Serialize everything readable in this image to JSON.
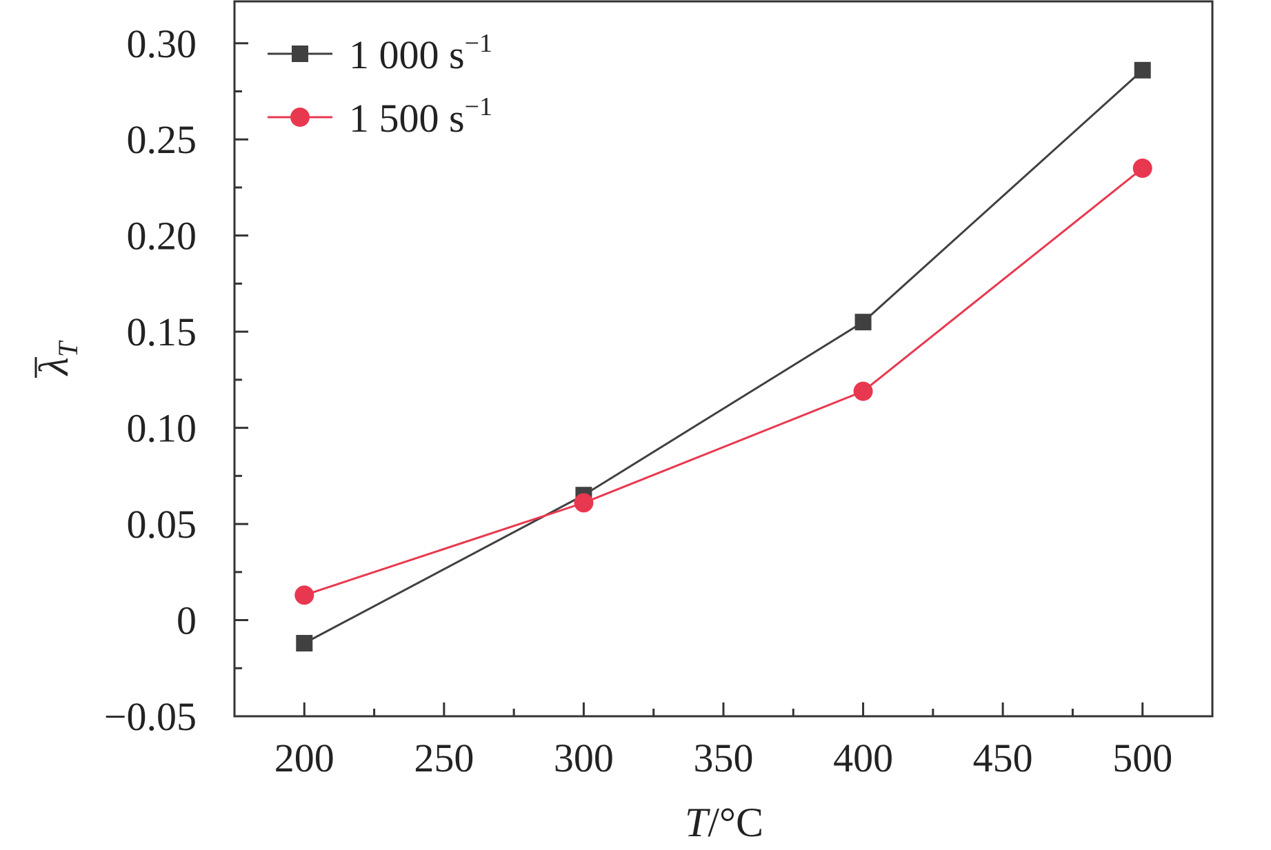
{
  "chart_data": {
    "type": "line",
    "title": "",
    "xlabel": "T/°C",
    "xlabel_parts": {
      "var": "T",
      "unit": "/°C"
    },
    "ylabel": "λ̄_T",
    "ylabel_parts": {
      "symbol": "λ",
      "subscript": "T"
    },
    "xlim": [
      175,
      525
    ],
    "ylim": [
      -0.05,
      0.3225
    ],
    "xticks": [
      200,
      250,
      300,
      350,
      400,
      450,
      500
    ],
    "xtick_labels": [
      "200",
      "250",
      "300",
      "350",
      "400",
      "450",
      "500"
    ],
    "yticks": [
      -0.05,
      0,
      0.05,
      0.1,
      0.15,
      0.2,
      0.25,
      0.3
    ],
    "ytick_labels": [
      "−0.05",
      "0",
      "0.05",
      "0.10",
      "0.15",
      "0.20",
      "0.25",
      "0.30"
    ],
    "grid": false,
    "legend_position": "top-left",
    "x": [
      200,
      300,
      400,
      500
    ],
    "series": [
      {
        "label_base": "1 000 s",
        "label_sup": "−1",
        "color": "#404040",
        "marker": "square",
        "values": [
          -0.012,
          0.065,
          0.155,
          0.286
        ]
      },
      {
        "label_base": "1 500 s",
        "label_sup": "−1",
        "color": "#e8384f",
        "marker": "circle",
        "values": [
          0.013,
          0.061,
          0.119,
          0.235
        ]
      }
    ]
  }
}
